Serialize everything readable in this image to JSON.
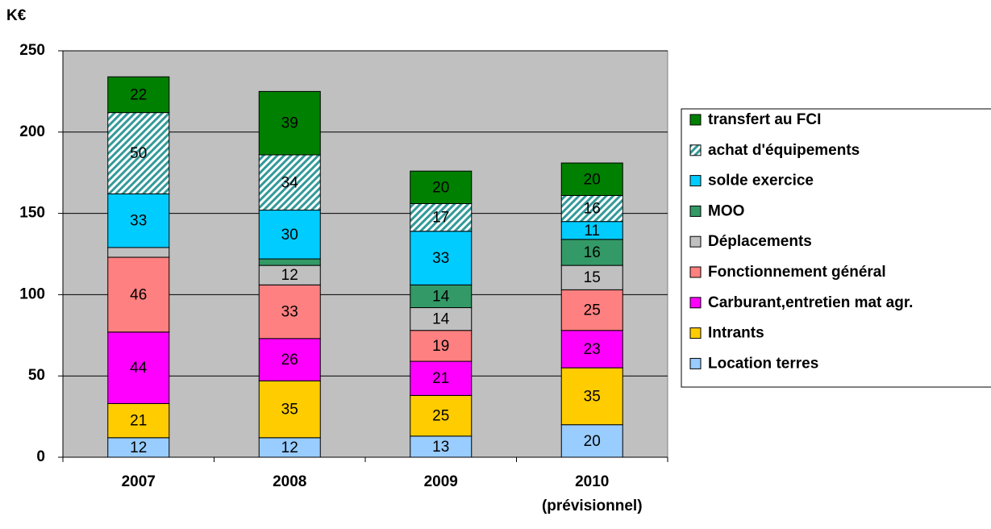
{
  "chart_data": {
    "type": "stacked_bar",
    "y_label": "K€",
    "categories": [
      "2007",
      "2008",
      "2009",
      "2010 (prévisionnel)"
    ],
    "series": [
      {
        "name": "Location terres",
        "color": "#99ccff",
        "values": [
          12,
          12,
          13,
          20
        ]
      },
      {
        "name": "Intrants",
        "color": "#ffcc00",
        "values": [
          21,
          35,
          25,
          35
        ]
      },
      {
        "name": "Carburant,entretien mat agr.",
        "color": "#ff00ff",
        "values": [
          44,
          26,
          21,
          23
        ]
      },
      {
        "name": "Fonctionnement général",
        "color": "#ff8080",
        "values": [
          46,
          33,
          19,
          25
        ]
      },
      {
        "name": "Déplacements",
        "color": "#c0c0c0",
        "values": [
          6,
          12,
          14,
          15
        ]
      },
      {
        "name": "MOO",
        "color": "#339966",
        "values": [
          0,
          4,
          14,
          16
        ]
      },
      {
        "name": "solde exercice",
        "color": "#00ccff",
        "values": [
          33,
          30,
          33,
          11
        ]
      },
      {
        "name": "achat d'équipements",
        "color": "#339999",
        "hatch": true,
        "values": [
          50,
          34,
          17,
          16
        ]
      },
      {
        "name": "transfert au FCI",
        "color": "#008000",
        "values": [
          22,
          39,
          20,
          20
        ]
      }
    ],
    "ylim": [
      0,
      250
    ],
    "yticks": [
      0,
      50,
      100,
      150,
      200,
      250
    ],
    "grid": true,
    "legend": "right"
  }
}
